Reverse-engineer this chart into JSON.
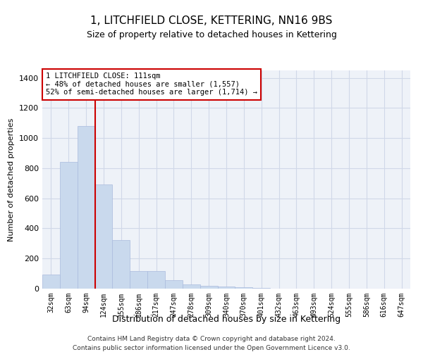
{
  "title": "1, LITCHFIELD CLOSE, KETTERING, NN16 9BS",
  "subtitle": "Size of property relative to detached houses in Kettering",
  "xlabel": "Distribution of detached houses by size in Kettering",
  "ylabel": "Number of detached properties",
  "footnote1": "Contains HM Land Registry data © Crown copyright and database right 2024.",
  "footnote2": "Contains public sector information licensed under the Open Government Licence v3.0.",
  "bar_labels": [
    "32sqm",
    "63sqm",
    "94sqm",
    "124sqm",
    "155sqm",
    "186sqm",
    "217sqm",
    "247sqm",
    "278sqm",
    "309sqm",
    "340sqm",
    "370sqm",
    "401sqm",
    "432sqm",
    "463sqm",
    "493sqm",
    "524sqm",
    "555sqm",
    "586sqm",
    "616sqm",
    "647sqm"
  ],
  "bar_values": [
    95,
    840,
    1080,
    690,
    325,
    115,
    115,
    55,
    30,
    20,
    15,
    10,
    5,
    0,
    0,
    0,
    0,
    0,
    0,
    0,
    0
  ],
  "bar_color": "#c9d9ed",
  "bar_edge_color": "#aabbdd",
  "grid_color": "#d0d8e8",
  "background_color": "#eef2f8",
  "red_line_x": 2.5,
  "annotation_text": "1 LITCHFIELD CLOSE: 111sqm\n← 48% of detached houses are smaller (1,557)\n52% of semi-detached houses are larger (1,714) →",
  "annotation_box_color": "#ffffff",
  "annotation_box_edge": "#cc0000",
  "ylim": [
    0,
    1450
  ],
  "yticks": [
    0,
    200,
    400,
    600,
    800,
    1000,
    1200,
    1400
  ]
}
